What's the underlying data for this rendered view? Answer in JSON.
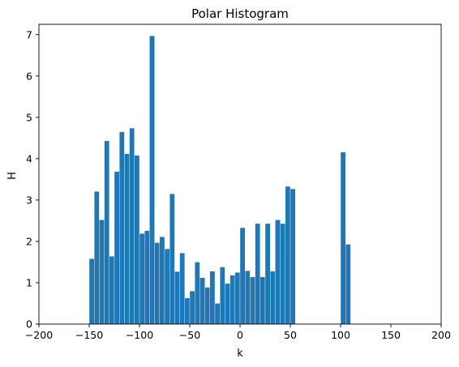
{
  "chart_data": {
    "type": "bar",
    "title": "Polar Histogram",
    "xlabel": "k",
    "ylabel": "H",
    "xlim": [
      -200,
      200
    ],
    "ylim": [
      0,
      7.25
    ],
    "xticks": [
      -200,
      -150,
      -100,
      -50,
      0,
      50,
      100,
      150,
      200
    ],
    "yticks": [
      0,
      1,
      2,
      3,
      4,
      5,
      6,
      7
    ],
    "bin_width": 5,
    "grid": false,
    "color": "#1f77b4",
    "bins": [
      {
        "x": -150,
        "y": 1.58
      },
      {
        "x": -145,
        "y": 3.21
      },
      {
        "x": -140,
        "y": 2.52
      },
      {
        "x": -135,
        "y": 4.43
      },
      {
        "x": -130,
        "y": 1.64
      },
      {
        "x": -125,
        "y": 3.69
      },
      {
        "x": -120,
        "y": 4.65
      },
      {
        "x": -115,
        "y": 4.12
      },
      {
        "x": -110,
        "y": 4.74
      },
      {
        "x": -105,
        "y": 4.08
      },
      {
        "x": -100,
        "y": 2.19
      },
      {
        "x": -95,
        "y": 2.26
      },
      {
        "x": -90,
        "y": 6.97
      },
      {
        "x": -85,
        "y": 1.97
      },
      {
        "x": -80,
        "y": 2.11
      },
      {
        "x": -75,
        "y": 1.82
      },
      {
        "x": -70,
        "y": 3.15
      },
      {
        "x": -65,
        "y": 1.27
      },
      {
        "x": -60,
        "y": 1.72
      },
      {
        "x": -55,
        "y": 0.63
      },
      {
        "x": -50,
        "y": 0.8
      },
      {
        "x": -45,
        "y": 1.5
      },
      {
        "x": -40,
        "y": 1.12
      },
      {
        "x": -35,
        "y": 0.89
      },
      {
        "x": -30,
        "y": 1.28
      },
      {
        "x": -25,
        "y": 0.5
      },
      {
        "x": -20,
        "y": 1.38
      },
      {
        "x": -15,
        "y": 0.98
      },
      {
        "x": -10,
        "y": 1.18
      },
      {
        "x": -5,
        "y": 1.25
      },
      {
        "x": 0,
        "y": 2.33
      },
      {
        "x": 5,
        "y": 1.29
      },
      {
        "x": 10,
        "y": 1.14
      },
      {
        "x": 15,
        "y": 2.43
      },
      {
        "x": 20,
        "y": 1.14
      },
      {
        "x": 25,
        "y": 2.43
      },
      {
        "x": 30,
        "y": 1.28
      },
      {
        "x": 35,
        "y": 2.52
      },
      {
        "x": 40,
        "y": 2.43
      },
      {
        "x": 45,
        "y": 3.33
      },
      {
        "x": 50,
        "y": 3.27
      },
      {
        "x": 100,
        "y": 4.16
      },
      {
        "x": 105,
        "y": 1.93
      }
    ]
  }
}
